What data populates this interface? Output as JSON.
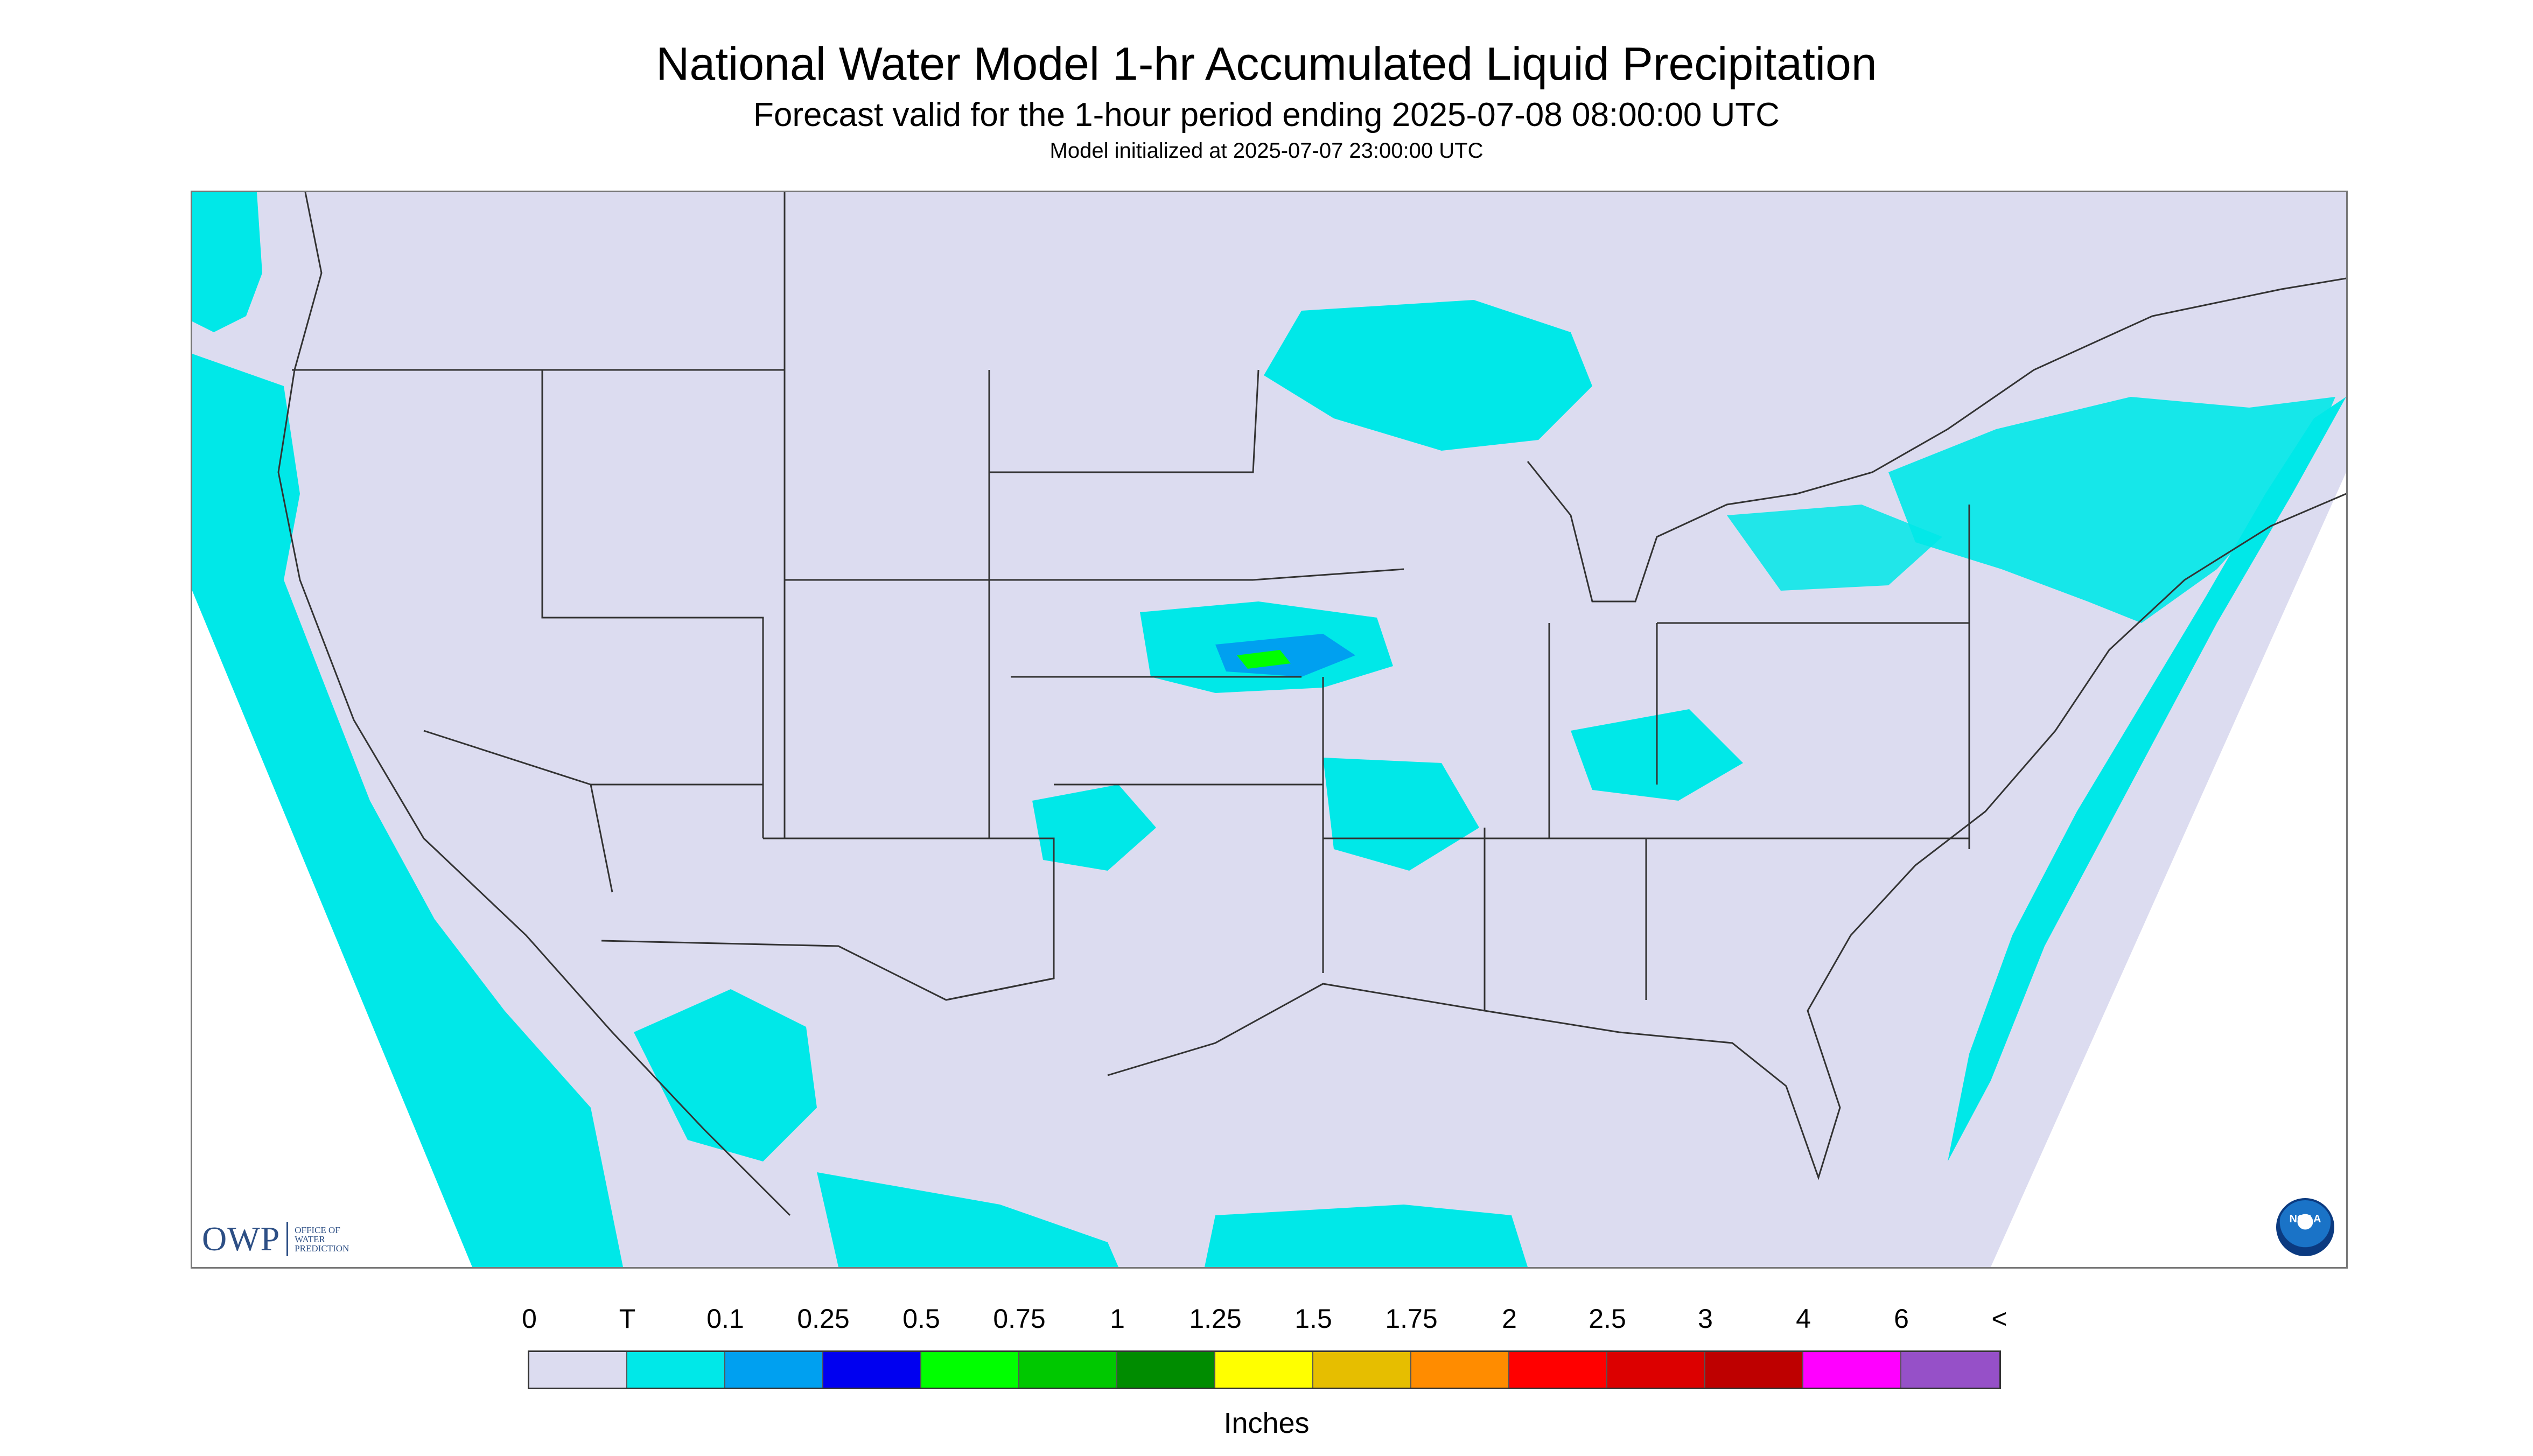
{
  "header": {
    "title": "National Water Model 1-hr Accumulated Liquid Precipitation",
    "subtitle": "Forecast valid for the 1-hour period ending 2025-07-08 08:00:00 UTC",
    "init": "Model initialized at 2025-07-07 23:00:00 UTC"
  },
  "logos": {
    "owp_mark": "OWP",
    "owp_lines": [
      "Office of",
      "Water",
      "Prediction"
    ],
    "noaa": "NOAA"
  },
  "legend": {
    "labels": [
      "0",
      "T",
      "0.1",
      "0.25",
      "0.5",
      "0.75",
      "1",
      "1.25",
      "1.5",
      "1.75",
      "2",
      "2.5",
      "3",
      "4",
      "6",
      "<"
    ],
    "colors": [
      "#dcdcf0",
      "#00e8e8",
      "#00a0f0",
      "#0000f0",
      "#00ff00",
      "#00c800",
      "#008c00",
      "#ffff00",
      "#e6be00",
      "#ff8c00",
      "#ff0000",
      "#dc0000",
      "#be0000",
      "#ff00ff",
      "#9650c8"
    ],
    "units": "Inches"
  },
  "map": {
    "region": "Continental United States",
    "background_color": "#dcdcf0",
    "outside_domain_color": "#ffffff"
  }
}
